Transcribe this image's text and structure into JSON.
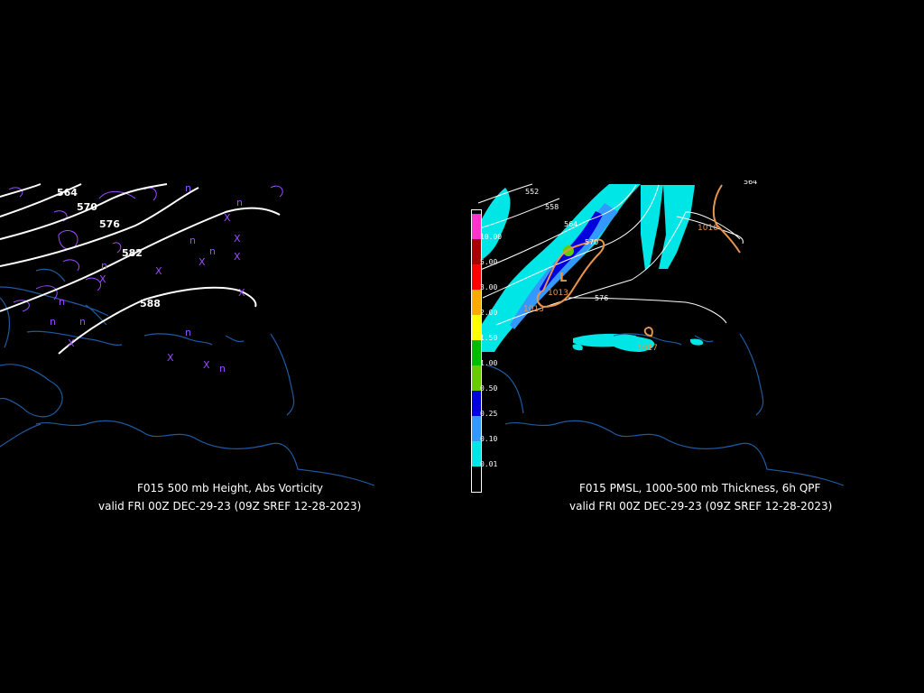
{
  "left_panel": {
    "caption_line1": "F015 500 mb Height, Abs Vorticity",
    "caption_line2": "valid FRI 00Z DEC-29-23 (09Z SREF 12-28-2023)",
    "contour_labels": [
      "564",
      "570",
      "576",
      "582",
      "588"
    ],
    "vorticity_marks": [
      "n",
      "X"
    ]
  },
  "right_panel": {
    "caption_line1": "F015 PMSL, 1000-500 mb Thickness, 6h QPF",
    "caption_line2": "valid FRI 00Z DEC-29-23 (09Z SREF 12-28-2023)",
    "thickness_labels": [
      "552",
      "558",
      "564",
      "570",
      "576",
      "564"
    ],
    "pressure_labels": [
      "1016",
      "1013",
      "1013",
      "1017"
    ],
    "low_marker": "L",
    "qpf_legend": {
      "levels": [
        "0.01",
        "0.10",
        "0.25",
        "0.50",
        "1.00",
        "1.50",
        "2.00",
        "3.00",
        "5.00",
        "10.00"
      ],
      "colors": [
        "#00e5e5",
        "#3399ff",
        "#0000dd",
        "#66cc00",
        "#00bb00",
        "#ffff00",
        "#ffaa00",
        "#ff0000",
        "#aa0000",
        "#ff33cc"
      ]
    }
  },
  "colors": {
    "coast": "#1e5aa0",
    "height_contour": "#ffffff",
    "vorticity": "#9a4cff",
    "thickness": "#ffffff",
    "isobar": "#e8954a"
  }
}
